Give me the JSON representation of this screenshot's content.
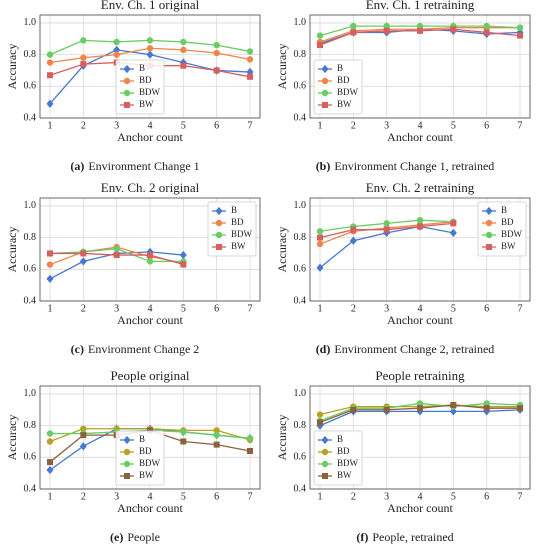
{
  "chart_data": [
    {
      "type": "line",
      "title": "Env. Ch. 1 original",
      "caption_label": "(a)",
      "caption": "Environment Change 1",
      "x_label": "Anchor count",
      "y_label": "Accuracy",
      "x": [
        1,
        2,
        3,
        4,
        5,
        6,
        7
      ],
      "xlim": [
        0.7,
        7.3
      ],
      "xticks": [
        1,
        2,
        3,
        4,
        5,
        6,
        7
      ],
      "ylim": [
        0.4,
        1.05
      ],
      "yticks": [
        0.4,
        0.6,
        0.8,
        {
          "value": 1,
          "label": "1.0"
        }
      ],
      "grid": true,
      "legend": "lower center",
      "series": [
        {
          "name": "B",
          "color": "#4878cf",
          "marker": "diamond",
          "values": [
            0.49,
            0.73,
            0.83,
            0.8,
            0.75,
            0.7,
            0.69
          ]
        },
        {
          "name": "BD",
          "color": "#ee854a",
          "marker": "circle",
          "values": [
            0.75,
            0.78,
            0.8,
            0.84,
            0.83,
            0.81,
            0.77
          ]
        },
        {
          "name": "BDW",
          "color": "#6acc64",
          "marker": "circle",
          "values": [
            0.8,
            0.89,
            0.88,
            0.89,
            0.88,
            0.86,
            0.82
          ]
        },
        {
          "name": "BW",
          "color": "#d65f5f",
          "marker": "square",
          "values": [
            0.67,
            0.74,
            0.75,
            0.73,
            0.73,
            0.7,
            0.66
          ]
        }
      ]
    },
    {
      "type": "line",
      "title": "Env. Ch. 1 retraining",
      "caption_label": "(b)",
      "caption": "Environment Change 1, retrained",
      "x_label": "Anchor count",
      "y_label": "Accuracy",
      "x": [
        1,
        2,
        3,
        4,
        5,
        6,
        7
      ],
      "xlim": [
        0.7,
        7.3
      ],
      "xticks": [
        1,
        2,
        3,
        4,
        5,
        6,
        7
      ],
      "ylim": [
        0.4,
        1.05
      ],
      "yticks": [
        0.4,
        0.6,
        0.8,
        {
          "value": 1,
          "label": "1.0"
        }
      ],
      "grid": true,
      "legend": "lower left",
      "series": [
        {
          "name": "B",
          "color": "#4878cf",
          "marker": "diamond",
          "values": [
            0.87,
            0.94,
            0.94,
            0.96,
            0.95,
            0.93,
            0.94
          ]
        },
        {
          "name": "BD",
          "color": "#ee854a",
          "marker": "circle",
          "values": [
            0.88,
            0.95,
            0.96,
            0.96,
            0.97,
            0.97,
            0.97
          ]
        },
        {
          "name": "BDW",
          "color": "#6acc64",
          "marker": "circle",
          "values": [
            0.92,
            0.98,
            0.98,
            0.98,
            0.98,
            0.98,
            0.97
          ]
        },
        {
          "name": "BW",
          "color": "#d65f5f",
          "marker": "square",
          "values": [
            0.86,
            0.94,
            0.95,
            0.95,
            0.96,
            0.94,
            0.92
          ]
        }
      ]
    },
    {
      "type": "line",
      "title": "Env. Ch. 2 original",
      "caption_label": "(c)",
      "caption": "Environment Change 2",
      "x_label": "Anchor count",
      "y_label": "Accuracy",
      "x": [
        1,
        2,
        3,
        4,
        5,
        6,
        7
      ],
      "xlim": [
        0.7,
        7.3
      ],
      "xticks": [
        1,
        2,
        3,
        4,
        5,
        6,
        7
      ],
      "ylim": [
        0.4,
        1.05
      ],
      "yticks": [
        0.4,
        0.6,
        0.8,
        {
          "value": 1,
          "label": "1.0"
        }
      ],
      "grid": true,
      "legend": "upper right",
      "series": [
        {
          "name": "B",
          "color": "#4878cf",
          "marker": "diamond",
          "values": [
            0.54,
            0.65,
            0.7,
            0.71,
            0.69,
            null,
            null
          ]
        },
        {
          "name": "BD",
          "color": "#ee854a",
          "marker": "circle",
          "values": [
            0.63,
            0.71,
            0.74,
            0.68,
            0.64,
            null,
            null
          ]
        },
        {
          "name": "BDW",
          "color": "#6acc64",
          "marker": "circle",
          "values": [
            0.7,
            0.71,
            0.73,
            0.65,
            0.65,
            null,
            null
          ]
        },
        {
          "name": "BW",
          "color": "#d65f5f",
          "marker": "square",
          "values": [
            0.7,
            0.7,
            0.69,
            0.69,
            0.63,
            null,
            null
          ]
        }
      ]
    },
    {
      "type": "line",
      "title": "Env. Ch. 2 retraining",
      "caption_label": "(d)",
      "caption": "Environment Change 2, retrained",
      "x_label": "Anchor count",
      "y_label": "Accuracy",
      "x": [
        1,
        2,
        3,
        4,
        5,
        6,
        7
      ],
      "xlim": [
        0.7,
        7.3
      ],
      "xticks": [
        1,
        2,
        3,
        4,
        5,
        6,
        7
      ],
      "ylim": [
        0.4,
        1.05
      ],
      "yticks": [
        0.4,
        0.6,
        0.8,
        {
          "value": 1,
          "label": "1.0"
        }
      ],
      "grid": true,
      "legend": "upper right",
      "series": [
        {
          "name": "B",
          "color": "#4878cf",
          "marker": "diamond",
          "values": [
            0.61,
            0.78,
            0.83,
            0.87,
            0.83,
            null,
            null
          ]
        },
        {
          "name": "BD",
          "color": "#ee854a",
          "marker": "circle",
          "values": [
            0.76,
            0.84,
            0.86,
            0.88,
            0.9,
            null,
            null
          ]
        },
        {
          "name": "BDW",
          "color": "#6acc64",
          "marker": "circle",
          "values": [
            0.84,
            0.87,
            0.89,
            0.91,
            0.9,
            null,
            null
          ]
        },
        {
          "name": "BW",
          "color": "#d65f5f",
          "marker": "square",
          "values": [
            0.8,
            0.85,
            0.85,
            0.87,
            0.89,
            null,
            null
          ]
        }
      ]
    },
    {
      "type": "line",
      "title": "People original",
      "caption_label": "(e)",
      "caption": "People",
      "x_label": "Anchor count",
      "y_label": "Accuracy",
      "x": [
        1,
        2,
        3,
        4,
        5,
        6,
        7
      ],
      "xlim": [
        0.7,
        7.3
      ],
      "xticks": [
        1,
        2,
        3,
        4,
        5,
        6,
        7
      ],
      "ylim": [
        0.4,
        1.05
      ],
      "yticks": [
        0.4,
        0.6,
        0.8,
        {
          "value": 1,
          "label": "1.0"
        }
      ],
      "grid": true,
      "legend": "lower center",
      "series": [
        {
          "name": "B",
          "color": "#4878cf",
          "marker": "diamond",
          "values": [
            0.52,
            0.67,
            0.78,
            0.78,
            0.76,
            0.74,
            0.72
          ]
        },
        {
          "name": "BD",
          "color": "#b8a124",
          "marker": "circle",
          "values": [
            0.7,
            0.78,
            0.78,
            0.78,
            0.77,
            0.77,
            0.71
          ]
        },
        {
          "name": "BDW",
          "color": "#6acc64",
          "marker": "circle",
          "values": [
            0.75,
            0.75,
            0.76,
            0.77,
            0.76,
            0.74,
            0.72
          ]
        },
        {
          "name": "BW",
          "color": "#8c613c",
          "marker": "square",
          "values": [
            0.57,
            0.74,
            0.74,
            0.77,
            0.7,
            0.68,
            0.64
          ]
        }
      ]
    },
    {
      "type": "line",
      "title": "People retraining",
      "caption_label": "(f)",
      "caption": "People, retrained",
      "x_label": "Anchor count",
      "y_label": "Accuracy",
      "x": [
        1,
        2,
        3,
        4,
        5,
        6,
        7
      ],
      "xlim": [
        0.7,
        7.3
      ],
      "xticks": [
        1,
        2,
        3,
        4,
        5,
        6,
        7
      ],
      "ylim": [
        0.4,
        1.05
      ],
      "yticks": [
        0.4,
        0.6,
        0.8,
        {
          "value": 1,
          "label": "1.0"
        }
      ],
      "grid": true,
      "legend": "lower left",
      "series": [
        {
          "name": "B",
          "color": "#4878cf",
          "marker": "diamond",
          "values": [
            0.8,
            0.89,
            0.89,
            0.89,
            0.89,
            0.89,
            0.9
          ]
        },
        {
          "name": "BD",
          "color": "#b8a124",
          "marker": "circle",
          "values": [
            0.87,
            0.92,
            0.92,
            0.92,
            0.93,
            0.92,
            0.92
          ]
        },
        {
          "name": "BDW",
          "color": "#6acc64",
          "marker": "circle",
          "values": [
            0.83,
            0.91,
            0.91,
            0.94,
            0.92,
            0.94,
            0.93
          ]
        },
        {
          "name": "BW",
          "color": "#8c613c",
          "marker": "square",
          "values": [
            0.82,
            0.9,
            0.9,
            0.91,
            0.93,
            0.91,
            0.91
          ]
        }
      ]
    }
  ]
}
